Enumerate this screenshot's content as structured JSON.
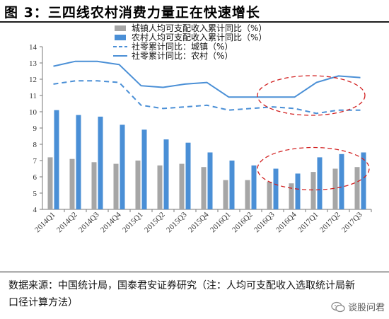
{
  "figure_title": "图 3：三四线农村消费力量正在快速增长",
  "source_note": "数据来源：中国统计局，国泰君安证券研究（注：人均可支配收入选取统计局新口径计算方法）",
  "watermark": "谈股问君",
  "colors": {
    "urban_income_bar": "#a6a6a6",
    "rural_income_bar": "#4a8fd6",
    "retail_line": "#4a8fd6",
    "highlight_ellipse": "#d22020"
  },
  "chart_data": {
    "type": "bar+line",
    "categories": [
      "2014Q1",
      "2014Q2",
      "2014Q3",
      "2014Q4",
      "2015Q1",
      "2015Q2",
      "2015Q3",
      "2015Q4",
      "2016Q1",
      "2016Q2",
      "2016Q3",
      "2016Q4",
      "2017Q1",
      "2017Q2",
      "2017Q3"
    ],
    "ylim": [
      4,
      14
    ],
    "yticks": [
      4,
      5,
      6,
      7,
      8,
      9,
      10,
      11,
      12,
      13,
      14
    ],
    "legend_position": "top-right",
    "grid": false,
    "series": [
      {
        "name": "城镇人均可支配收入累计同比（%）",
        "type": "bar",
        "color": "#a6a6a6",
        "values": [
          7.2,
          7.1,
          6.9,
          6.8,
          7.0,
          6.7,
          6.8,
          6.6,
          5.8,
          5.8,
          5.7,
          5.6,
          6.3,
          6.5,
          6.6
        ]
      },
      {
        "name": "农村人均可支配收入累计同比（%）",
        "type": "bar",
        "color": "#4a8fd6",
        "values": [
          10.1,
          9.8,
          9.7,
          9.2,
          8.9,
          8.3,
          8.1,
          7.5,
          7.0,
          6.7,
          6.5,
          6.2,
          7.2,
          7.4,
          7.5
        ]
      },
      {
        "name": "社零累计同比：城镇（%）",
        "type": "line",
        "style": "dashed",
        "color": "#4a8fd6",
        "values": [
          11.7,
          11.9,
          11.9,
          11.8,
          10.4,
          10.2,
          10.3,
          10.4,
          10.1,
          10.2,
          10.3,
          10.2,
          9.9,
          10.1,
          10.1
        ]
      },
      {
        "name": "社零累计同比：农村（%）",
        "type": "line",
        "style": "solid",
        "color": "#4a8fd6",
        "values": [
          12.8,
          13.1,
          13.1,
          12.9,
          11.6,
          11.5,
          11.7,
          11.8,
          10.9,
          10.9,
          10.9,
          10.9,
          11.8,
          12.2,
          12.1
        ]
      }
    ],
    "annotations": [
      {
        "type": "dashed-ellipse",
        "color": "#d22020",
        "around": "社零累计同比 2016Q3–2017Q3"
      },
      {
        "type": "dashed-ellipse",
        "color": "#d22020",
        "around": "人均可支配收入 2016Q3–2017Q3"
      }
    ]
  }
}
